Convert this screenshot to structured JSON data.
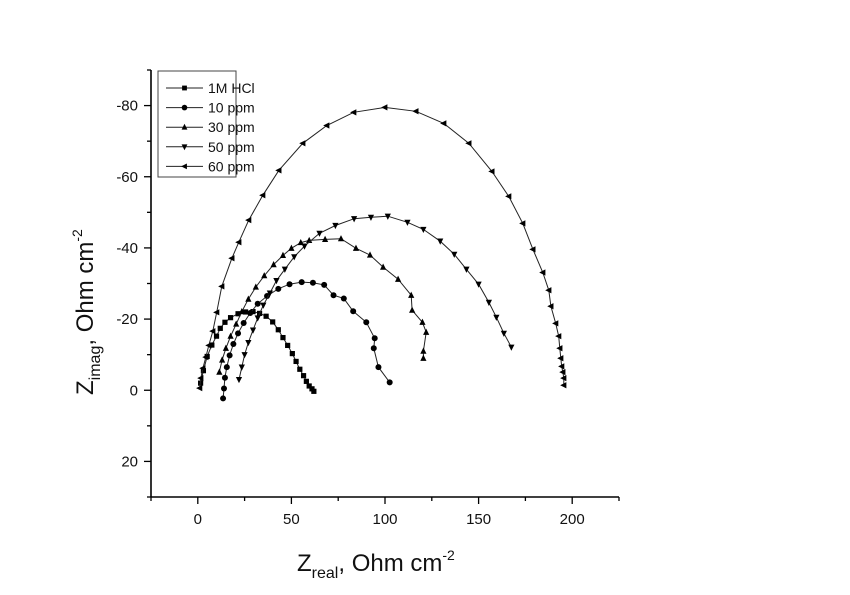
{
  "chart_data": {
    "type": "scatter",
    "title": "",
    "xlabel": "Z_real, Ohm cm^-2",
    "ylabel": "Z_imag, Ohm cm^-2",
    "xlabel_parts": {
      "main": "Z",
      "sub": "real",
      "rest": ", Ohm cm",
      "sup": "-2"
    },
    "ylabel_parts": {
      "main": "Z",
      "sub": "imag",
      "rest": ", Ohm cm",
      "sup": "-2"
    },
    "xlim": [
      -25,
      225
    ],
    "ylim": [
      30,
      -90
    ],
    "y_inverted": true,
    "xticks": [
      0,
      50,
      100,
      150,
      200
    ],
    "xtick_labels": [
      "0",
      "50",
      "100",
      "150",
      "200"
    ],
    "yticks": [
      -80,
      -60,
      -40,
      -20,
      0,
      20
    ],
    "ytick_labels": [
      "-80",
      "-60",
      "-40",
      "-20",
      "0",
      "20"
    ],
    "grid": false,
    "legend_position": "upper left",
    "series": [
      {
        "name": "1M HCl",
        "marker": "square",
        "x": [
          1.5,
          3.0,
          5.0,
          7.5,
          10.0,
          12.0,
          14.5,
          17.5,
          21.5,
          25.5,
          29.5,
          33.0,
          36.5,
          40.0,
          43.0,
          45.5,
          48.0,
          50.5,
          52.5,
          54.5,
          56.5,
          58.0,
          59.5,
          61.0,
          62.0
        ],
        "y": [
          -2.0,
          -5.5,
          -9.5,
          -12.7,
          -15.2,
          -17.4,
          -19.1,
          -20.4,
          -21.5,
          -22.0,
          -22.1,
          -21.6,
          -20.8,
          -19.2,
          -17.0,
          -14.8,
          -12.6,
          -10.3,
          -8.1,
          -5.9,
          -4.1,
          -2.5,
          -1.2,
          -0.4,
          0.3
        ]
      },
      {
        "name": "10 ppm",
        "marker": "circle",
        "x": [
          13.5,
          14.0,
          14.5,
          15.5,
          17.0,
          19.0,
          21.5,
          24.5,
          28.0,
          32.0,
          37.0,
          43.0,
          49.0,
          55.5,
          61.5,
          67.5,
          72.5,
          78.0,
          83.0,
          90.0,
          94.5,
          94.0,
          96.5,
          102.5
        ],
        "y": [
          2.3,
          -0.5,
          -3.5,
          -6.5,
          -9.8,
          -13.0,
          -16.0,
          -18.9,
          -21.7,
          -24.3,
          -26.5,
          -28.5,
          -29.8,
          -30.4,
          -30.2,
          -29.6,
          -26.7,
          -25.8,
          -22.2,
          -19.1,
          -14.6,
          -11.8,
          -6.5,
          -2.2
        ]
      },
      {
        "name": "30 ppm",
        "marker": "triangle-up",
        "x": [
          11.5,
          13.0,
          15.0,
          17.5,
          20.5,
          23.5,
          27.0,
          31.0,
          35.5,
          40.5,
          45.5,
          50.0,
          55.0,
          59.5,
          68.0,
          76.5,
          84.5,
          92.0,
          99.0,
          107.0,
          114.0,
          114.5,
          120.0,
          122.0,
          120.5,
          120.5
        ],
        "y": [
          -5.1,
          -8.5,
          -11.8,
          -15.2,
          -18.6,
          -22.1,
          -25.6,
          -29.0,
          -32.2,
          -35.3,
          -37.9,
          -39.9,
          -41.5,
          -42.1,
          -42.4,
          -42.6,
          -39.9,
          -38.0,
          -34.6,
          -31.2,
          -26.7,
          -22.5,
          -19.1,
          -16.3,
          -11.0,
          -9.0
        ]
      },
      {
        "name": "50 ppm",
        "marker": "triangle-down",
        "x": [
          22.0,
          23.5,
          25.0,
          27.0,
          29.5,
          32.0,
          35.0,
          38.5,
          42.0,
          46.5,
          51.5,
          57.0,
          65.0,
          73.5,
          83.5,
          92.5,
          101.5,
          112.0,
          120.5,
          129.5,
          137.0,
          143.5,
          150.0,
          155.5,
          159.5,
          163.5,
          167.5
        ],
        "y": [
          -3.0,
          -6.5,
          -10.0,
          -13.4,
          -16.9,
          -20.3,
          -23.9,
          -27.3,
          -30.8,
          -34.0,
          -37.5,
          -40.5,
          -44.1,
          -46.3,
          -48.2,
          -48.6,
          -48.9,
          -47.2,
          -45.2,
          -41.9,
          -38.2,
          -34.0,
          -29.8,
          -24.7,
          -20.5,
          -16.0,
          -12.1
        ]
      },
      {
        "name": "60 ppm",
        "marker": "triangle-left",
        "x": [
          1.0,
          1.6,
          2.7,
          4.3,
          5.9,
          8.0,
          10.1,
          12.8,
          18.2,
          21.9,
          27.2,
          34.7,
          43.3,
          56.1,
          68.9,
          83.3,
          99.9,
          116.5,
          131.4,
          144.8,
          157.1,
          166.1,
          173.6,
          179.0,
          184.3,
          187.5,
          188.6,
          191.2,
          192.8,
          193.4,
          193.9,
          194.4,
          195.0,
          195.5,
          195.5
        ],
        "y": [
          -0.6,
          -3.4,
          -6.2,
          -9.3,
          -12.6,
          -16.6,
          -21.9,
          -29.2,
          -37.1,
          -41.6,
          -47.8,
          -54.8,
          -61.8,
          -69.4,
          -74.4,
          -78.1,
          -79.5,
          -78.4,
          -75.0,
          -69.4,
          -61.5,
          -54.5,
          -46.9,
          -39.6,
          -33.1,
          -28.1,
          -23.6,
          -18.8,
          -15.2,
          -11.8,
          -9.0,
          -6.7,
          -5.1,
          -3.4,
          -1.4
        ]
      }
    ]
  },
  "legend": {
    "items": [
      "1M HCl",
      "10 ppm",
      "30 ppm",
      "50 ppm",
      "60 ppm"
    ]
  },
  "colors": {
    "series": "#000000",
    "axis": "#000000",
    "legend_border": "#333333"
  }
}
